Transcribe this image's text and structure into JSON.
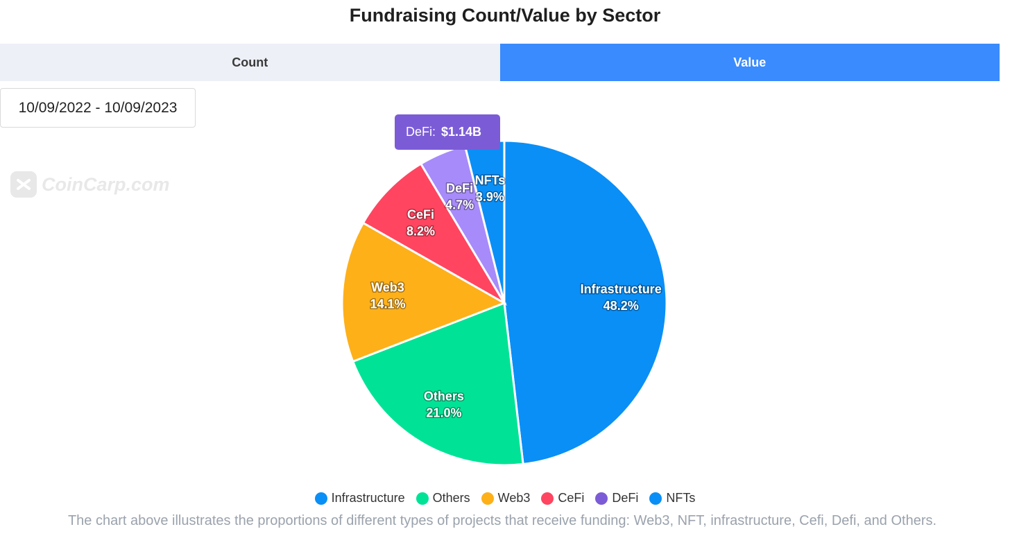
{
  "header": {
    "title": "Fundraising Count/Value by Sector"
  },
  "tabs": [
    {
      "label": "Count",
      "active": false
    },
    {
      "label": "Value",
      "active": true
    }
  ],
  "date_range": "10/09/2022 - 10/09/2023",
  "watermark": "CoinCarp.com",
  "tooltip": {
    "label": "DeFi:",
    "value": "$1.14B",
    "color": "#7b5cd6"
  },
  "caption": "The chart above illustrates the proportions of different types of projects that receive funding: Web3, NFT, infrastructure, Cefi, Defi, and Others.",
  "chart_data": {
    "type": "pie",
    "title": "Fundraising Count/Value by Sector",
    "legend_position": "bottom",
    "series": [
      {
        "name": "Infrastructure",
        "value": 48.2,
        "label": "48.2%",
        "color": "#0a8ff7"
      },
      {
        "name": "Others",
        "value": 21.0,
        "label": "21.0%",
        "color": "#00e396"
      },
      {
        "name": "Web3",
        "value": 14.1,
        "label": "14.1%",
        "color": "#feb019"
      },
      {
        "name": "CeFi",
        "value": 8.2,
        "label": "8.2%",
        "color": "#ff4560"
      },
      {
        "name": "DeFi",
        "value": 4.7,
        "label": "4.7%",
        "color": "#a78bfa"
      },
      {
        "name": "NFTs",
        "value": 3.9,
        "label": "3.9%",
        "color": "#0a8ff7"
      }
    ],
    "legend": [
      {
        "name": "Infrastructure",
        "color": "#0a8ff7"
      },
      {
        "name": "Others",
        "color": "#00e396"
      },
      {
        "name": "Web3",
        "color": "#feb019"
      },
      {
        "name": "CeFi",
        "color": "#ff4560"
      },
      {
        "name": "DeFi",
        "color": "#7b5cd6"
      },
      {
        "name": "NFTs",
        "color": "#0a8ff7"
      }
    ]
  }
}
